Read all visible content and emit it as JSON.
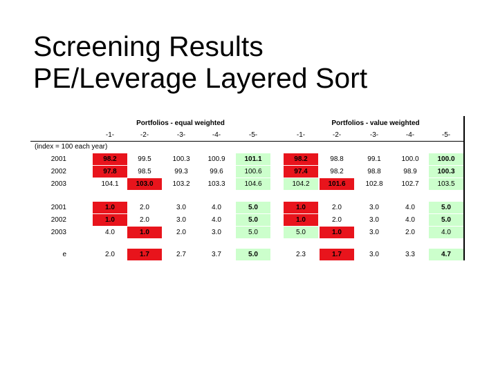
{
  "slide": {
    "title_line1": "Screening Results",
    "title_line2": "PE/Leverage Layered Sort"
  },
  "table": {
    "group_equal": "Portfolios - equal weighted",
    "group_value": "Portfolios - value weighted",
    "columns": [
      "-1-",
      "-2-",
      "-3-",
      "-4-",
      "-5-",
      "-1-",
      "-2-",
      "-3-",
      "-4-",
      "-5-"
    ],
    "index_note": "(index = 100 each year)",
    "colors": {
      "red": "#e8141c",
      "green": "#ccffcc"
    },
    "rows": [
      {
        "label": "2001",
        "values": [
          "98.2",
          "99.5",
          "100.3",
          "100.9",
          "101.1",
          "98.2",
          "98.8",
          "99.1",
          "100.0",
          "100.0"
        ],
        "styles": [
          "red-bold",
          "",
          "",
          "",
          "green-bold",
          "red-bold",
          "",
          "",
          "",
          "green-bold"
        ]
      },
      {
        "label": "2002",
        "values": [
          "97.8",
          "98.5",
          "99.3",
          "99.6",
          "100.6",
          "97.4",
          "98.2",
          "98.8",
          "98.9",
          "100.3"
        ],
        "styles": [
          "red-bold",
          "",
          "",
          "",
          "green",
          "red-bold",
          "",
          "",
          "",
          "green-bold"
        ]
      },
      {
        "label": "2003",
        "values": [
          "104.1",
          "103.0",
          "103.2",
          "103.3",
          "104.6",
          "104.2",
          "101.6",
          "102.8",
          "102.7",
          "103.5"
        ],
        "styles": [
          "",
          "red-bold",
          "",
          "",
          "green",
          "green",
          "red-bold",
          "",
          "",
          "green"
        ]
      },
      {
        "label": "2001",
        "values": [
          "1.0",
          "2.0",
          "3.0",
          "4.0",
          "5.0",
          "1.0",
          "2.0",
          "3.0",
          "4.0",
          "5.0"
        ],
        "styles": [
          "red-bold",
          "",
          "",
          "",
          "green-bold",
          "red-bold",
          "",
          "",
          "",
          "green-bold"
        ]
      },
      {
        "label": "2002",
        "values": [
          "1.0",
          "2.0",
          "3.0",
          "4.0",
          "5.0",
          "1.0",
          "2.0",
          "3.0",
          "4.0",
          "5.0"
        ],
        "styles": [
          "red-bold",
          "",
          "",
          "",
          "green-bold",
          "red-bold",
          "",
          "",
          "",
          "green-bold"
        ]
      },
      {
        "label": "2003",
        "values": [
          "4.0",
          "1.0",
          "2.0",
          "3.0",
          "5.0",
          "5.0",
          "1.0",
          "3.0",
          "2.0",
          "4.0"
        ],
        "styles": [
          "",
          "red-bold",
          "",
          "",
          "green",
          "green",
          "red-bold",
          "",
          "",
          "green"
        ]
      },
      {
        "label": "e",
        "values": [
          "2.0",
          "1.7",
          "2.7",
          "3.7",
          "5.0",
          "2.3",
          "1.7",
          "3.0",
          "3.3",
          "4.7"
        ],
        "styles": [
          "",
          "red-bold",
          "",
          "",
          "green-bold",
          "",
          "red-bold",
          "",
          "",
          "green-bold"
        ]
      }
    ]
  }
}
